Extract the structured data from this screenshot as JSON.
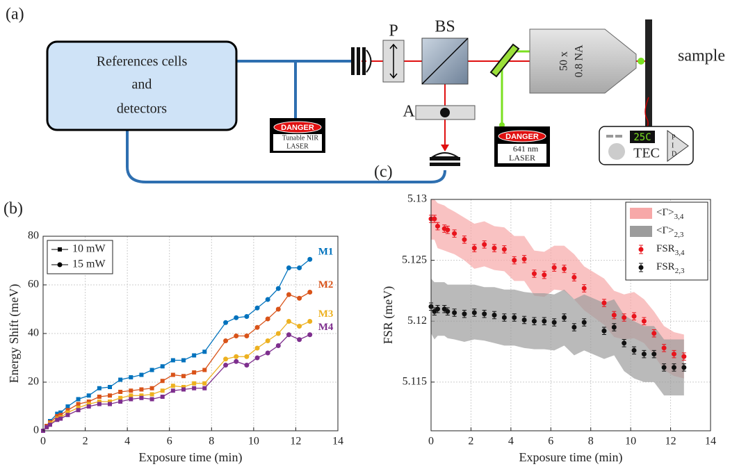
{
  "diagram": {
    "label": "(a)",
    "source_box": [
      "References cells",
      "and",
      "detectors"
    ],
    "nir_laser": {
      "warning": "DANGER",
      "lines": [
        "Tunable NIR",
        "LASER"
      ]
    },
    "polarizer": "P",
    "beam_splitter": "BS",
    "analyzer": "A",
    "visible_laser": {
      "warning": "DANGER",
      "lines": [
        "641 nm",
        "LASER"
      ]
    },
    "objective": [
      "50 x",
      "0.8 NA"
    ],
    "sample": "sample",
    "tec": {
      "display": "25C",
      "label": "TEC",
      "pid": [
        "P",
        "I",
        "D"
      ]
    }
  },
  "chart_data": [
    {
      "type": "line",
      "panel_label": "(b)",
      "xlabel": "Exposure time (min)",
      "ylabel": "Energy Shift (meV)",
      "xlim": [
        0,
        14
      ],
      "xticks": [
        0,
        2,
        4,
        6,
        8,
        10,
        12,
        14
      ],
      "ylim": [
        0,
        80
      ],
      "yticks": [
        0,
        20,
        40,
        60,
        80
      ],
      "grid": true,
      "legend": {
        "position": "upper left",
        "entries": [
          {
            "name": "10 mW",
            "marker": "square"
          },
          {
            "name": "15 mW",
            "marker": "circle"
          }
        ]
      },
      "x": [
        0,
        0.17,
        0.33,
        0.67,
        0.83,
        1.17,
        1.67,
        2.17,
        2.67,
        3.17,
        3.67,
        4.17,
        4.67,
        5.17,
        5.67,
        6.17,
        6.67,
        7.17,
        7.67,
        8.67,
        9.17,
        9.67,
        10.17,
        10.67,
        11.17,
        11.67,
        12.17,
        12.67
      ],
      "marker_entry": [
        0,
        0,
        0,
        0,
        0,
        0,
        0,
        0,
        0,
        0,
        0,
        0,
        0,
        0,
        0,
        0,
        0,
        0,
        0,
        1,
        1,
        1,
        1,
        1,
        1,
        1,
        1,
        1
      ],
      "series": [
        {
          "name": "M1",
          "color": "#0072bd",
          "values": [
            0,
            2,
            4,
            7,
            7.5,
            10,
            13,
            14.5,
            17.5,
            18,
            21,
            22,
            23,
            25,
            26.5,
            29,
            29,
            31,
            32.5,
            44.5,
            46.5,
            47,
            50.5,
            54,
            58.5,
            67,
            67,
            70.5
          ]
        },
        {
          "name": "M2",
          "color": "#d95319",
          "values": [
            0,
            2,
            3.5,
            6,
            6.5,
            8.5,
            11,
            12,
            14,
            14.5,
            16,
            16.5,
            17,
            17.5,
            20.5,
            23,
            22.5,
            24,
            25,
            37,
            39,
            39,
            42.5,
            46,
            50,
            56,
            54.5,
            57
          ]
        },
        {
          "name": "M3",
          "color": "#edb120",
          "values": [
            0,
            1.5,
            3,
            5,
            5.5,
            7.5,
            9.5,
            11,
            12,
            12,
            13.5,
            14.5,
            14.5,
            15,
            16.5,
            18.5,
            18,
            19.5,
            19.5,
            29.5,
            30.5,
            30.5,
            34,
            37,
            40,
            45,
            43,
            45
          ]
        },
        {
          "name": "M4",
          "color": "#7e2f8e",
          "values": [
            0,
            1.5,
            2.5,
            4.5,
            5,
            6.5,
            8.5,
            10,
            11,
            11,
            12,
            13,
            13.5,
            13,
            14,
            16.5,
            17,
            17.5,
            17.5,
            27,
            28.5,
            27,
            30,
            32,
            35,
            39.5,
            37.5,
            39.5
          ]
        }
      ]
    },
    {
      "type": "errorbar",
      "panel_label": "(c)",
      "xlabel": "Exposure time (min)",
      "ylabel": "FSR (meV)",
      "xlim": [
        0,
        14
      ],
      "xticks": [
        0,
        2,
        4,
        6,
        8,
        10,
        12,
        14
      ],
      "ylim": [
        5.111,
        5.13
      ],
      "yticks": [
        5.115,
        5.12,
        5.125,
        5.13
      ],
      "grid": true,
      "legend": {
        "position": "upper right"
      },
      "x": [
        0,
        0.17,
        0.33,
        0.67,
        0.83,
        1.17,
        1.67,
        2.17,
        2.67,
        3.17,
        3.67,
        4.17,
        4.67,
        5.17,
        5.67,
        6.17,
        6.67,
        7.17,
        7.67,
        8.67,
        9.17,
        9.67,
        10.17,
        10.67,
        11.17,
        11.67,
        12.17,
        12.67
      ],
      "bands": [
        {
          "name": "<Γ>",
          "subscript": "3,4",
          "color": "#f7a8a8",
          "high": [
            5.13,
            5.13,
            5.1297,
            5.1295,
            5.1293,
            5.129,
            5.1285,
            5.128,
            5.1282,
            5.1278,
            5.1277,
            5.127,
            5.127,
            5.1258,
            5.1257,
            5.1262,
            5.1262,
            5.1255,
            5.1245,
            5.1235,
            5.1225,
            5.1222,
            5.1224,
            5.1218,
            5.1208,
            5.1196,
            5.1191,
            5.1189
          ],
          "low": [
            5.1267,
            5.1267,
            5.126,
            5.1258,
            5.1257,
            5.1255,
            5.125,
            5.1243,
            5.1245,
            5.1242,
            5.1241,
            5.1233,
            5.1233,
            5.1221,
            5.122,
            5.1226,
            5.1225,
            5.1218,
            5.1209,
            5.1197,
            5.1187,
            5.1185,
            5.1186,
            5.1182,
            5.1172,
            5.116,
            5.1155,
            5.1153
          ]
        },
        {
          "name": "<Γ>",
          "subscript": "2,3",
          "color": "#9c9c9c",
          "high": [
            5.1235,
            5.1232,
            5.1232,
            5.1232,
            5.123,
            5.123,
            5.123,
            5.123,
            5.1228,
            5.1228,
            5.1226,
            5.1226,
            5.1224,
            5.1223,
            5.1223,
            5.1222,
            5.1226,
            5.1218,
            5.1222,
            5.1215,
            5.1218,
            5.1205,
            5.12,
            5.1196,
            5.1196,
            5.1185,
            5.1185,
            5.1185
          ],
          "low": [
            5.119,
            5.1185,
            5.1188,
            5.1188,
            5.1186,
            5.1185,
            5.1183,
            5.1185,
            5.1184,
            5.1182,
            5.118,
            5.118,
            5.1178,
            5.1177,
            5.1177,
            5.1176,
            5.118,
            5.1172,
            5.1176,
            5.1169,
            5.1172,
            5.1159,
            5.1153,
            5.115,
            5.115,
            5.1139,
            5.1139,
            5.1139
          ]
        }
      ],
      "series": [
        {
          "name": "FSR",
          "subscript": "3,4",
          "color": "#e8141c",
          "values": [
            5.1284,
            5.1284,
            5.1278,
            5.1276,
            5.1275,
            5.1272,
            5.1267,
            5.126,
            5.1263,
            5.126,
            5.1259,
            5.125,
            5.1251,
            5.1239,
            5.1238,
            5.1244,
            5.1243,
            5.1236,
            5.1227,
            5.1215,
            5.1205,
            5.1203,
            5.1204,
            5.12,
            5.119,
            5.1178,
            5.1173,
            5.1171
          ],
          "errors": [
            0.0003,
            0.0003,
            0.0003,
            0.0003,
            0.0003,
            0.0003,
            0.0003,
            0.0003,
            0.0003,
            0.0003,
            0.0003,
            0.0003,
            0.0003,
            0.0003,
            0.0003,
            0.0003,
            0.0003,
            0.0003,
            0.0003,
            0.0003,
            0.0003,
            0.0003,
            0.0003,
            0.0003,
            0.0003,
            0.0003,
            0.0003,
            0.0003
          ]
        },
        {
          "name": "FSR",
          "subscript": "2,3",
          "color": "#111111",
          "values": [
            5.1212,
            5.1208,
            5.121,
            5.121,
            5.1208,
            5.1207,
            5.1206,
            5.1207,
            5.1206,
            5.1205,
            5.1203,
            5.1203,
            5.1201,
            5.12,
            5.12,
            5.1199,
            5.1203,
            5.1195,
            5.1199,
            5.1192,
            5.1195,
            5.1182,
            5.1176,
            5.1173,
            5.1173,
            5.1162,
            5.1162,
            5.1162
          ],
          "errors": [
            0.0003,
            0.0003,
            0.0003,
            0.0003,
            0.0003,
            0.0003,
            0.0003,
            0.0003,
            0.0003,
            0.0003,
            0.0003,
            0.0003,
            0.0003,
            0.0003,
            0.0003,
            0.0003,
            0.0003,
            0.0003,
            0.0003,
            0.0003,
            0.0003,
            0.0003,
            0.0003,
            0.0003,
            0.0003,
            0.0003,
            0.0003,
            0.0003
          ]
        }
      ]
    }
  ]
}
